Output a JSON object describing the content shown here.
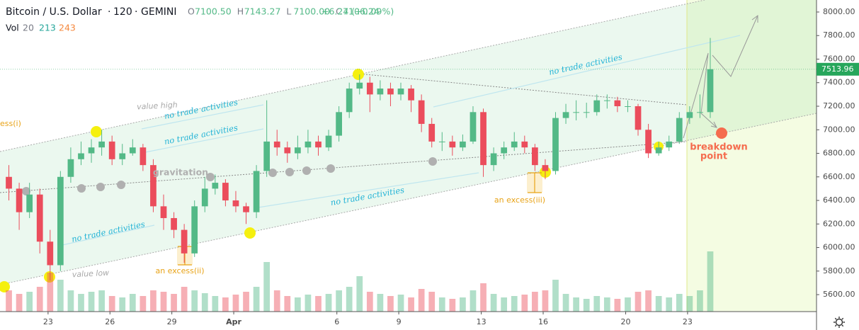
{
  "header": {
    "symbol": "Bitcoin / U.S. Dollar",
    "interval": "120",
    "exchange": "GEMINI",
    "ohlc": [
      {
        "key": "O",
        "value": "7100.50"
      },
      {
        "key": "H",
        "value": "7143.27"
      },
      {
        "key": "L",
        "value": "7100.00"
      },
      {
        "key": "C",
        "value": "7106.24"
      }
    ],
    "change": "+6.24 (+0.09%)",
    "volume": {
      "label": "Vol",
      "length": "20",
      "value": "213",
      "ma": "243"
    }
  },
  "chart_data": {
    "type": "candlestick",
    "x": [
      1.1,
      1.6,
      2.1,
      2.6,
      3.1,
      3.6,
      4.1,
      4.6,
      5.1,
      5.6,
      6.1,
      6.6,
      7.1,
      7.6,
      8.1,
      8.6,
      9.1,
      9.6,
      10.1,
      10.6,
      11.1,
      11.6,
      12.1,
      12.6,
      13.1,
      13.6,
      14.1,
      14.6,
      15.1,
      15.6,
      16.1,
      16.6,
      17.1,
      17.6,
      18.1,
      18.6,
      19.1,
      19.6,
      20.1,
      20.6,
      21.1,
      21.6,
      22.1,
      22.6,
      23.1,
      23.6,
      24.1,
      24.6,
      25.1,
      25.6,
      26.1,
      26.6,
      27.1,
      27.6,
      28.1,
      28.6,
      29.1,
      29.6,
      30.1,
      30.6,
      31.1,
      31.6,
      32.1,
      32.6,
      33.1,
      33.6,
      34.1,
      34.6,
      35.1
    ],
    "open": [
      6600,
      6500,
      6300,
      6450,
      6050,
      5850,
      6600,
      6750,
      6800,
      6850,
      6900,
      6750,
      6800,
      6850,
      6700,
      6350,
      6250,
      6150,
      5950,
      6350,
      6500,
      6550,
      6400,
      6350,
      6300,
      6650,
      6900,
      6850,
      6800,
      6850,
      6900,
      6850,
      6950,
      7150,
      7350,
      7400,
      7300,
      7350,
      7300,
      7350,
      7250,
      7050,
      6900,
      6900,
      6850,
      6900,
      7150,
      6700,
      6800,
      6850,
      6900,
      6850,
      6700,
      6650,
      7100,
      7150,
      7150,
      7150,
      7250,
      7250,
      7200,
      7200,
      7000,
      6800,
      6850,
      6900,
      7100,
      7150,
      7150
    ],
    "high": [
      6700,
      6550,
      6550,
      6500,
      6150,
      6650,
      6850,
      6900,
      6920,
      7000,
      6950,
      6880,
      6920,
      6880,
      6750,
      6450,
      6300,
      6200,
      6400,
      6600,
      6620,
      6580,
      6480,
      6380,
      6700,
      7250,
      7000,
      6900,
      6950,
      7000,
      6950,
      7000,
      7200,
      7400,
      7470,
      7450,
      7420,
      7400,
      7400,
      7380,
      7300,
      7100,
      6980,
      6950,
      6960,
      7200,
      7180,
      6850,
      6900,
      6980,
      6950,
      6880,
      6750,
      7150,
      7220,
      7250,
      7230,
      7300,
      7300,
      7280,
      7250,
      7220,
      7050,
      6900,
      6950,
      7150,
      7200,
      7300,
      7780
    ],
    "low": [
      6400,
      6150,
      6250,
      5950,
      5720,
      5800,
      6550,
      6700,
      6720,
      6780,
      6700,
      6700,
      6780,
      6650,
      6300,
      6150,
      6080,
      5870,
      5920,
      6300,
      6450,
      6350,
      6300,
      6200,
      6250,
      6600,
      6780,
      6720,
      6750,
      6800,
      6780,
      6820,
      6900,
      7100,
      7300,
      7150,
      7250,
      7200,
      7250,
      7150,
      6980,
      6850,
      6820,
      6780,
      6820,
      6880,
      6600,
      6650,
      6750,
      6820,
      6800,
      6650,
      6580,
      6620,
      7050,
      7080,
      7100,
      7120,
      7180,
      7150,
      7150,
      6950,
      6760,
      6780,
      6820,
      6880,
      7050,
      7100,
      7100
    ],
    "close": [
      6500,
      6300,
      6450,
      6050,
      5850,
      6600,
      6750,
      6800,
      6850,
      6900,
      6750,
      6800,
      6850,
      6700,
      6350,
      6250,
      6150,
      5950,
      6350,
      6500,
      6550,
      6400,
      6350,
      6300,
      6650,
      6900,
      6850,
      6800,
      6850,
      6900,
      6850,
      6950,
      7150,
      7350,
      7400,
      7300,
      7350,
      7300,
      7350,
      7250,
      7050,
      6900,
      6900,
      6850,
      6900,
      7150,
      6700,
      6800,
      6850,
      6900,
      6850,
      6700,
      6650,
      7100,
      7150,
      7150,
      7150,
      7250,
      7250,
      7200,
      7200,
      7000,
      6800,
      6850,
      6900,
      7100,
      7150,
      7150,
      7513.96
    ],
    "volume": [
      30,
      25,
      28,
      35,
      55,
      45,
      30,
      25,
      28,
      30,
      22,
      20,
      25,
      22,
      30,
      28,
      25,
      35,
      30,
      26,
      22,
      20,
      24,
      28,
      35,
      70,
      30,
      22,
      20,
      24,
      22,
      25,
      30,
      35,
      50,
      28,
      25,
      22,
      24,
      20,
      32,
      28,
      20,
      18,
      20,
      30,
      40,
      25,
      20,
      22,
      24,
      28,
      30,
      45,
      25,
      20,
      18,
      22,
      20,
      18,
      20,
      28,
      30,
      22,
      20,
      25,
      22,
      30,
      85
    ],
    "up_color": "#53b987",
    "down_color": "#eb4d5c",
    "last_color": "#26a65b",
    "last_price": {
      "value": 7513.96,
      "label": "7513.96"
    },
    "xlim": [
      0.67,
      40.25
    ],
    "xticks": [
      {
        "value": 3,
        "label": "23"
      },
      {
        "value": 6,
        "label": "26"
      },
      {
        "value": 9,
        "label": "29"
      },
      {
        "value": 12,
        "label": "Apr"
      },
      {
        "value": 17,
        "label": "6"
      },
      {
        "value": 20,
        "label": "9"
      },
      {
        "value": 24,
        "label": "13"
      },
      {
        "value": 27,
        "label": "16"
      },
      {
        "value": 31,
        "label": "20"
      },
      {
        "value": 34,
        "label": "23"
      }
    ],
    "ylim": [
      5456,
      8102
    ],
    "yticks": [
      {
        "value": 5600,
        "label": "5600.00"
      },
      {
        "value": 5800,
        "label": "5800.00"
      },
      {
        "value": 6000,
        "label": "6000.00"
      },
      {
        "value": 6200,
        "label": "6200.00"
      },
      {
        "value": 6400,
        "label": "6400.00"
      },
      {
        "value": 6600,
        "label": "6600.00"
      },
      {
        "value": 6800,
        "label": "6800.00"
      },
      {
        "value": 7000,
        "label": "7000.00"
      },
      {
        "value": 7200,
        "label": "7200.00"
      },
      {
        "value": 7400,
        "label": "7400.00"
      },
      {
        "value": 7600,
        "label": "7600.00"
      },
      {
        "value": 7800,
        "label": "7800.00"
      },
      {
        "value": 8000,
        "label": "8000.00"
      }
    ],
    "annotations": [
      "no trade activities",
      "no trade activities",
      "no trade activities",
      "no trade activities",
      "no trade activities",
      "value high",
      "value low",
      "gravitation",
      "an excess(ii)",
      "an excess(iii)",
      "ess(i)"
    ],
    "breakdown": [
      "breakdown",
      "point"
    ]
  }
}
